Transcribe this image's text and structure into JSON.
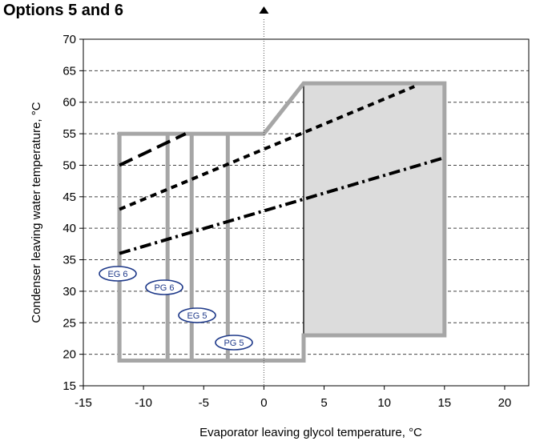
{
  "chart_data": {
    "type": "line",
    "title": "Options 5 and 6",
    "xlabel": "Evaporator leaving glycol temperature, °C",
    "ylabel": "Condenser leaving water temperature, °C",
    "xlim": [
      -15,
      22
    ],
    "ylim": [
      15,
      70
    ],
    "xticks": [
      -15,
      -10,
      -5,
      0,
      5,
      10,
      15,
      20
    ],
    "yticks": [
      15,
      20,
      25,
      30,
      35,
      40,
      45,
      50,
      55,
      60,
      65,
      70
    ],
    "grid": true,
    "envelope": [
      [
        -12,
        19
      ],
      [
        3.3,
        19
      ],
      [
        3.3,
        23
      ],
      [
        15,
        23
      ],
      [
        15,
        63
      ],
      [
        3.3,
        63
      ],
      [
        0,
        55
      ],
      [
        -12,
        55
      ]
    ],
    "shaded_region": [
      [
        3.3,
        23
      ],
      [
        15,
        23
      ],
      [
        15,
        63
      ],
      [
        3.3,
        63
      ]
    ],
    "vertical_limits": [
      {
        "label": "EG 6",
        "x": -12
      },
      {
        "label": "PG 6",
        "x": -8
      },
      {
        "label": "EG 5",
        "x": -6
      },
      {
        "label": "PG 5",
        "x": -3
      }
    ],
    "series": [
      {
        "style": "long-dash",
        "x": [
          -12,
          -6.5
        ],
        "y": [
          50,
          55
        ]
      },
      {
        "style": "short-dash",
        "x": [
          -12,
          12.5
        ],
        "y": [
          43,
          62.5
        ]
      },
      {
        "style": "dash-dot",
        "x": [
          -12,
          15
        ],
        "y": [
          36,
          51.2
        ]
      }
    ]
  }
}
